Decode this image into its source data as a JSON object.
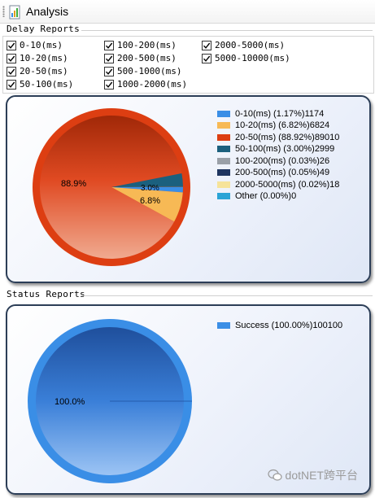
{
  "app": {
    "title": "Analysis"
  },
  "delay_section": {
    "label": "Delay  Reports",
    "checkboxes": [
      {
        "label": "0-10(ms)",
        "checked": true
      },
      {
        "label": "10-20(ms)",
        "checked": true
      },
      {
        "label": "20-50(ms)",
        "checked": true
      },
      {
        "label": "50-100(ms)",
        "checked": true
      },
      {
        "label": "100-200(ms)",
        "checked": true
      },
      {
        "label": "200-500(ms)",
        "checked": true
      },
      {
        "label": "500-1000(ms)",
        "checked": true
      },
      {
        "label": "1000-2000(ms)",
        "checked": true
      },
      {
        "label": "2000-5000(ms)",
        "checked": true
      },
      {
        "label": "5000-10000(ms)",
        "checked": true
      }
    ]
  },
  "status_section": {
    "label": "Status Reports"
  },
  "chart_data": [
    {
      "type": "pie",
      "title": "",
      "slice_labels": {
        "88.9%": "88.9%",
        "6.8%": "6.8%",
        "small": "3.0%"
      },
      "series": [
        {
          "name": "0-10(ms)",
          "percent": 1.17,
          "count": 1174,
          "color": "#3a8ee6"
        },
        {
          "name": "10-20(ms)",
          "percent": 6.82,
          "count": 6824,
          "color": "#f7b955"
        },
        {
          "name": "20-50(ms)",
          "percent": 88.92,
          "count": 89010,
          "color": "#dd3e12"
        },
        {
          "name": "50-100(ms)",
          "percent": 3.0,
          "count": 2999,
          "color": "#1b607e"
        },
        {
          "name": "100-200(ms)",
          "percent": 0.03,
          "count": 26,
          "color": "#9aa0a8"
        },
        {
          "name": "200-500(ms)",
          "percent": 0.05,
          "count": 49,
          "color": "#1f3560"
        },
        {
          "name": "2000-5000(ms)",
          "percent": 0.02,
          "count": 18,
          "color": "#f6e39a"
        },
        {
          "name": "Other",
          "percent": 0.0,
          "count": 0,
          "color": "#2aa4d6"
        }
      ],
      "legend": [
        "0-10(ms) (1.17%)1174",
        "10-20(ms) (6.82%)6824",
        "20-50(ms) (88.92%)89010",
        "50-100(ms) (3.00%)2999",
        "100-200(ms) (0.03%)26",
        "200-500(ms) (0.05%)49",
        "2000-5000(ms) (0.02%)18",
        "Other (0.00%)0"
      ],
      "legend_position": "right"
    },
    {
      "type": "pie",
      "title": "",
      "slice_labels": {
        "100.0%": "100.0%"
      },
      "series": [
        {
          "name": "Success",
          "percent": 100.0,
          "count": 100100,
          "color": "#3a8ee6"
        }
      ],
      "legend": [
        "Success (100.00%)100100"
      ],
      "legend_position": "right"
    }
  ],
  "watermark": {
    "text": "dotNET跨平台"
  }
}
